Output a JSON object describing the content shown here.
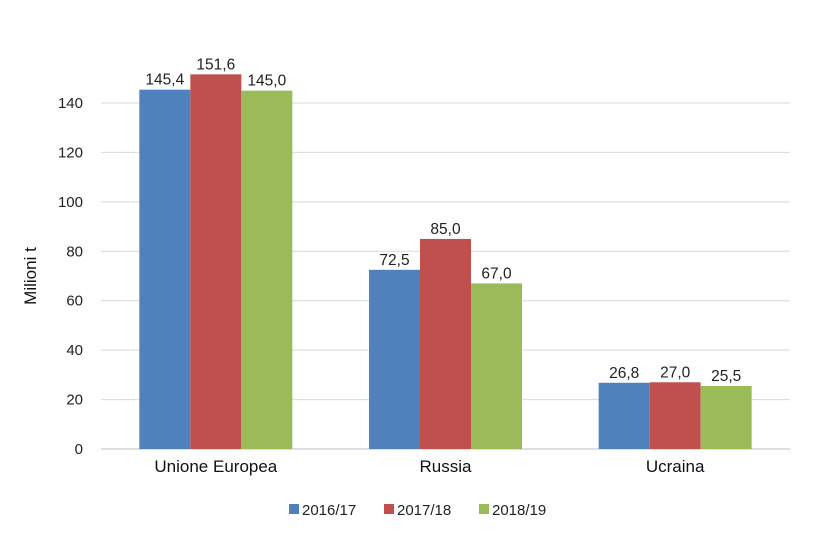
{
  "chart_data": {
    "type": "bar",
    "title": "",
    "xlabel": "",
    "ylabel": "Milioni t",
    "ylim": [
      0,
      150
    ],
    "yticks": [
      0,
      20,
      40,
      60,
      80,
      100,
      120,
      140
    ],
    "grid": true,
    "legend_position": "bottom",
    "categories": [
      "Unione Europea",
      "Russia",
      "Ucraina"
    ],
    "series": [
      {
        "name": "2016/17",
        "color": "#4F81BD",
        "values": [
          145.4,
          72.5,
          26.8
        ],
        "labels": [
          "145,4",
          "72,5",
          "26,8"
        ]
      },
      {
        "name": "2017/18",
        "color": "#C0504D",
        "values": [
          151.6,
          85.0,
          27.0
        ],
        "labels": [
          "151,6",
          "85,0",
          "27,0"
        ]
      },
      {
        "name": "2018/19",
        "color": "#9BBB59",
        "values": [
          145.0,
          67.0,
          25.5
        ],
        "labels": [
          "145,0",
          "67,0",
          "25,5"
        ]
      }
    ]
  }
}
